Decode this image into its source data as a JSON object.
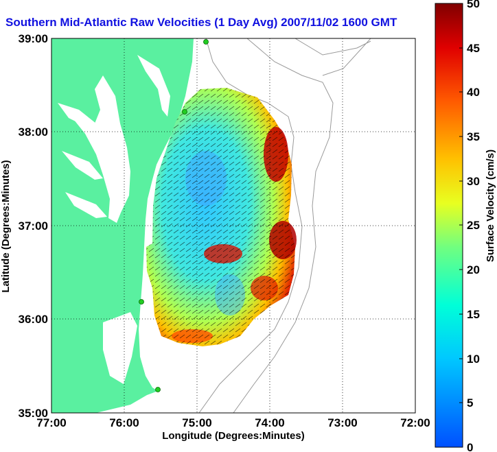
{
  "title": "Southern Mid-Atlantic Raw Velocities (1 Day Avg) 2007/11/02 1600 GMT",
  "map": {
    "xlabel": "Longitude (Degrees:Minutes)",
    "ylabel": "Latitude (Degrees:Minutes)",
    "x_ticks": [
      "77:00",
      "76:00",
      "75:00",
      "74:00",
      "73:00",
      "72:00"
    ],
    "y_ticks": [
      "39:00",
      "38:00",
      "37:00",
      "36:00",
      "35:00"
    ],
    "lon_range": [
      -77,
      -72
    ],
    "lat_range": [
      35,
      39
    ],
    "grid": "dotted",
    "land_color": "#5af0a0",
    "contour_color": "#999999",
    "station_color": "#22cc22"
  },
  "colorbar": {
    "label": "Surface Velocity (cm/s)",
    "ticks": [
      "50",
      "45",
      "40",
      "35",
      "30",
      "25",
      "20",
      "15",
      "10",
      "5",
      "0"
    ],
    "range": [
      0,
      50
    ],
    "colormap": "jet"
  }
}
